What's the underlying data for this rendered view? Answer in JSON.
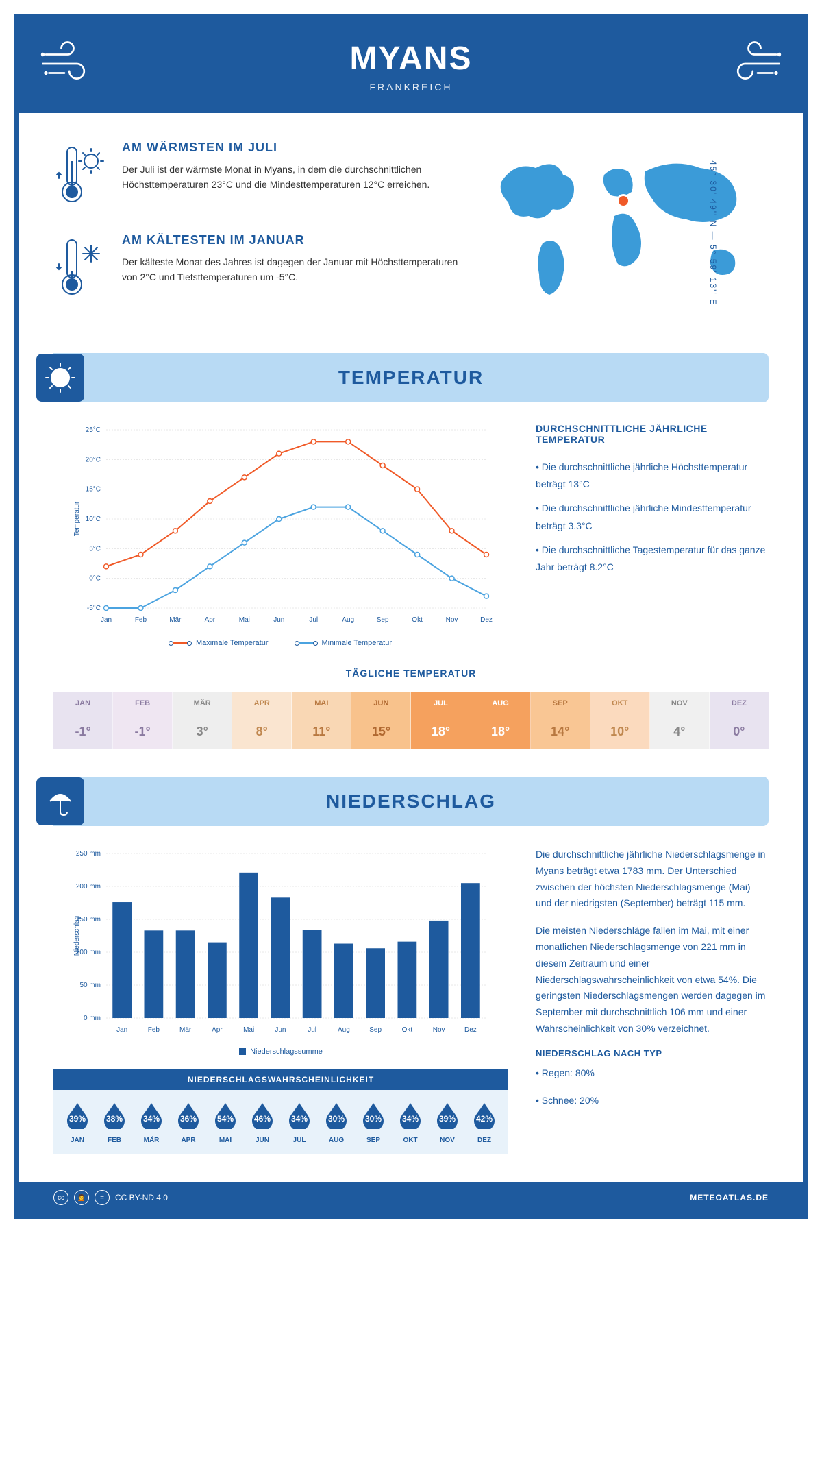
{
  "header": {
    "title": "MYANS",
    "subtitle": "FRANKREICH"
  },
  "coords": "45° 30' 49'' N — 5° 59' 13'' E",
  "warmest": {
    "title": "AM WÄRMSTEN IM JULI",
    "text": "Der Juli ist der wärmste Monat in Myans, in dem die durchschnittlichen Höchsttemperaturen 23°C und die Mindesttemperaturen 12°C erreichen."
  },
  "coldest": {
    "title": "AM KÄLTESTEN IM JANUAR",
    "text": "Der kälteste Monat des Jahres ist dagegen der Januar mit Höchsttemperaturen von 2°C und Tiefsttemperaturen um -5°C."
  },
  "temp_section": {
    "title": "TEMPERATUR",
    "chart": {
      "months": [
        "Jan",
        "Feb",
        "Mär",
        "Apr",
        "Mai",
        "Jun",
        "Jul",
        "Aug",
        "Sep",
        "Okt",
        "Nov",
        "Dez"
      ],
      "max_temp": [
        2,
        4,
        8,
        13,
        17,
        21,
        23,
        23,
        19,
        15,
        8,
        4
      ],
      "min_temp": [
        -5,
        -5,
        -2,
        2,
        6,
        10,
        12,
        12,
        8,
        4,
        0,
        -3
      ],
      "max_color": "#f05a28",
      "min_color": "#4ba3e0",
      "ylabel": "Temperatur",
      "ylim": [
        -5,
        25
      ],
      "ytick_step": 5,
      "grid_color": "#d0d0d0",
      "legend_max": "Maximale Temperatur",
      "legend_min": "Minimale Temperatur"
    },
    "side": {
      "title": "DURCHSCHNITTLICHE JÄHRLICHE TEMPERATUR",
      "b1": "• Die durchschnittliche jährliche Höchsttemperatur beträgt 13°C",
      "b2": "• Die durchschnittliche jährliche Mindesttemperatur beträgt 3.3°C",
      "b3": "• Die durchschnittliche Tagestemperatur für das ganze Jahr beträgt 8.2°C"
    }
  },
  "daily_temp": {
    "title": "TÄGLICHE TEMPERATUR",
    "months": [
      "JAN",
      "FEB",
      "MÄR",
      "APR",
      "MAI",
      "JUN",
      "JUL",
      "AUG",
      "SEP",
      "OKT",
      "NOV",
      "DEZ"
    ],
    "values": [
      "-1°",
      "-1°",
      "3°",
      "8°",
      "11°",
      "15°",
      "18°",
      "18°",
      "14°",
      "10°",
      "4°",
      "0°"
    ],
    "bg_colors": [
      "#e8e3f0",
      "#efe6f2",
      "#eeeeee",
      "#fae5d0",
      "#f9d7b4",
      "#f8c28c",
      "#f5a15e",
      "#f5a15e",
      "#f9c694",
      "#fbdabe",
      "#f0f0f0",
      "#e8e3f0"
    ],
    "text_colors": [
      "#8a7aa0",
      "#8a7aa0",
      "#888888",
      "#c08850",
      "#b87840",
      "#b06830",
      "#ffffff",
      "#ffffff",
      "#b87840",
      "#c08850",
      "#888888",
      "#8a7aa0"
    ]
  },
  "precip_section": {
    "title": "NIEDERSCHLAG",
    "chart": {
      "months": [
        "Jan",
        "Feb",
        "Mär",
        "Apr",
        "Mai",
        "Jun",
        "Jul",
        "Aug",
        "Sep",
        "Okt",
        "Nov",
        "Dez"
      ],
      "values": [
        176,
        133,
        133,
        115,
        221,
        183,
        134,
        113,
        106,
        116,
        148,
        205
      ],
      "bar_color": "#1e5a9e",
      "ylabel": "Niederschlag",
      "ylim": [
        0,
        250
      ],
      "ytick_step": 50,
      "legend": "Niederschlagssumme"
    },
    "text": {
      "p1": "Die durchschnittliche jährliche Niederschlagsmenge in Myans beträgt etwa 1783 mm. Der Unterschied zwischen der höchsten Niederschlagsmenge (Mai) und der niedrigsten (September) beträgt 115 mm.",
      "p2": "Die meisten Niederschläge fallen im Mai, mit einer monatlichen Niederschlagsmenge von 221 mm in diesem Zeitraum und einer Niederschlagswahrscheinlichkeit von etwa 54%. Die geringsten Niederschlagsmengen werden dagegen im September mit durchschnittlich 106 mm und einer Wahrscheinlichkeit von 30% verzeichnet.",
      "type_title": "NIEDERSCHLAG NACH TYP",
      "type1": "• Regen: 80%",
      "type2": "• Schnee: 20%"
    }
  },
  "drops": {
    "title": "NIEDERSCHLAGSWAHRSCHEINLICHKEIT",
    "months": [
      "JAN",
      "FEB",
      "MÄR",
      "APR",
      "MAI",
      "JUN",
      "JUL",
      "AUG",
      "SEP",
      "OKT",
      "NOV",
      "DEZ"
    ],
    "pct": [
      "39%",
      "38%",
      "34%",
      "36%",
      "54%",
      "46%",
      "34%",
      "30%",
      "30%",
      "34%",
      "39%",
      "42%"
    ],
    "drop_color": "#1e5a9e"
  },
  "footer": {
    "license": "CC BY-ND 4.0",
    "site": "METEOATLAS.DE"
  }
}
